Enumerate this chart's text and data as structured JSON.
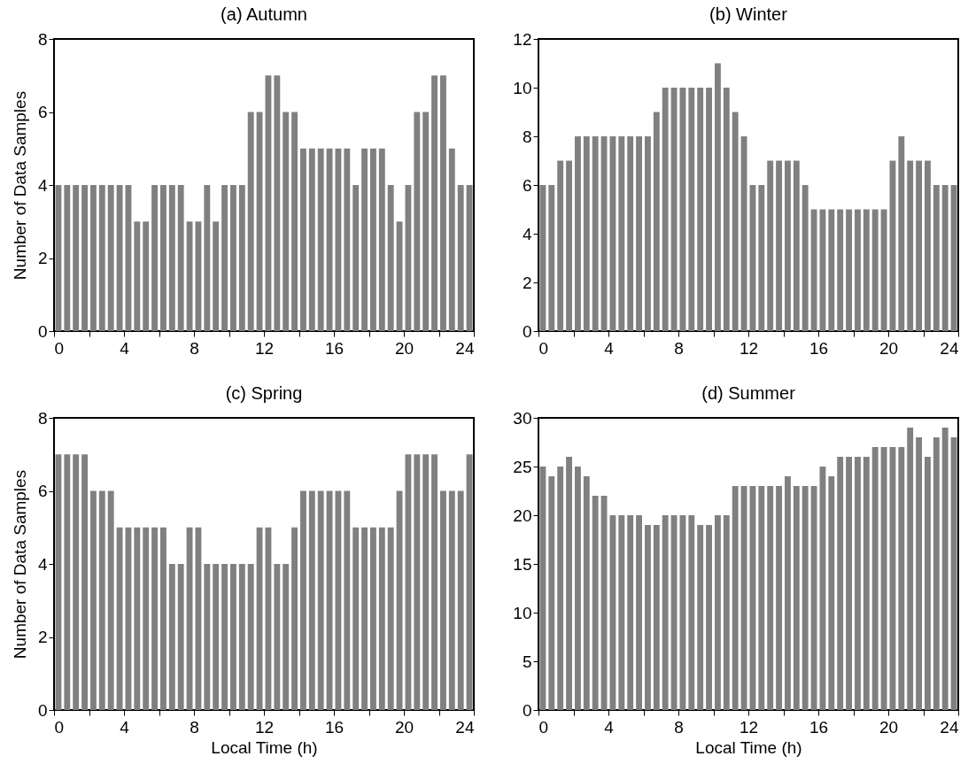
{
  "chart_data": [
    {
      "type": "histogram",
      "title": "(a) Autumn",
      "ylabel": "Number of Data Samples",
      "color": "#808080",
      "bins": [
        0,
        0.5,
        1,
        1.5,
        2,
        2.5,
        3,
        3.5,
        4,
        4.5,
        5,
        5.5,
        6,
        6.5,
        7,
        7.5,
        8,
        8.5,
        9,
        9.5,
        10,
        10.5,
        11,
        11.5,
        12,
        12.5,
        13,
        13.5,
        14,
        14.5,
        15,
        15.5,
        16,
        16.5,
        17,
        17.5,
        18,
        18.5,
        19,
        19.5,
        20,
        20.5,
        21,
        21.5,
        22,
        22.5,
        23,
        23.5,
        24
      ],
      "values": [
        4,
        4,
        4,
        4,
        4,
        4,
        4,
        4,
        4,
        3,
        3,
        4,
        4,
        4,
        4,
        3,
        3,
        4,
        3,
        4,
        4,
        4,
        6,
        6,
        7,
        7,
        6,
        6,
        5,
        5,
        5,
        5,
        5,
        5,
        4,
        5,
        5,
        5,
        4,
        3,
        4,
        6,
        6,
        7,
        7,
        5,
        4,
        4
      ],
      "xlim": [
        0,
        24
      ],
      "xticks": [
        0,
        {
          "value": 2,
          "label": null
        },
        4,
        {
          "value": 6,
          "label": null
        },
        8,
        {
          "value": 10,
          "label": null
        },
        12,
        {
          "value": 14,
          "label": null
        },
        16,
        {
          "value": 18,
          "label": null
        },
        20,
        {
          "value": 22,
          "label": null
        },
        24
      ],
      "ylim": [
        0,
        8
      ],
      "yticks": [
        0,
        2,
        4,
        6,
        8
      ]
    },
    {
      "type": "histogram",
      "title": "(b) Winter",
      "color": "#808080",
      "bins": [
        0,
        0.5,
        1,
        1.5,
        2,
        2.5,
        3,
        3.5,
        4,
        4.5,
        5,
        5.5,
        6,
        6.5,
        7,
        7.5,
        8,
        8.5,
        9,
        9.5,
        10,
        10.5,
        11,
        11.5,
        12,
        12.5,
        13,
        13.5,
        14,
        14.5,
        15,
        15.5,
        16,
        16.5,
        17,
        17.5,
        18,
        18.5,
        19,
        19.5,
        20,
        20.5,
        21,
        21.5,
        22,
        22.5,
        23,
        23.5,
        24
      ],
      "values": [
        6,
        6,
        7,
        7,
        8,
        8,
        8,
        8,
        8,
        8,
        8,
        8,
        8,
        9,
        10,
        10,
        10,
        10,
        10,
        10,
        11,
        10,
        9,
        8,
        6,
        6,
        7,
        7,
        7,
        7,
        6,
        5,
        5,
        5,
        5,
        5,
        5,
        5,
        5,
        5,
        7,
        8,
        7,
        7,
        7,
        6,
        6,
        6
      ],
      "xlim": [
        0,
        24
      ],
      "xticks": [
        0,
        {
          "value": 2,
          "label": null
        },
        4,
        {
          "value": 6,
          "label": null
        },
        8,
        {
          "value": 10,
          "label": null
        },
        12,
        {
          "value": 14,
          "label": null
        },
        16,
        {
          "value": 18,
          "label": null
        },
        20,
        {
          "value": 22,
          "label": null
        },
        24
      ],
      "ylim": [
        0,
        12
      ],
      "yticks": [
        0,
        2,
        4,
        6,
        8,
        10,
        12
      ]
    },
    {
      "type": "histogram",
      "title": "(c) Spring",
      "xlabel": "Local Time (h)",
      "ylabel": "Number of Data Samples",
      "color": "#808080",
      "bins": [
        0,
        0.5,
        1,
        1.5,
        2,
        2.5,
        3,
        3.5,
        4,
        4.5,
        5,
        5.5,
        6,
        6.5,
        7,
        7.5,
        8,
        8.5,
        9,
        9.5,
        10,
        10.5,
        11,
        11.5,
        12,
        12.5,
        13,
        13.5,
        14,
        14.5,
        15,
        15.5,
        16,
        16.5,
        17,
        17.5,
        18,
        18.5,
        19,
        19.5,
        20,
        20.5,
        21,
        21.5,
        22,
        22.5,
        23,
        23.5,
        24
      ],
      "values": [
        7,
        7,
        7,
        7,
        6,
        6,
        6,
        5,
        5,
        5,
        5,
        5,
        5,
        4,
        4,
        5,
        5,
        4,
        4,
        4,
        4,
        4,
        4,
        5,
        5,
        4,
        4,
        5,
        6,
        6,
        6,
        6,
        6,
        6,
        5,
        5,
        5,
        5,
        5,
        6,
        7,
        7,
        7,
        7,
        6,
        6,
        6,
        7
      ],
      "xlim": [
        0,
        24
      ],
      "xticks": [
        0,
        {
          "value": 2,
          "label": null
        },
        4,
        {
          "value": 6,
          "label": null
        },
        8,
        {
          "value": 10,
          "label": null
        },
        12,
        {
          "value": 14,
          "label": null
        },
        16,
        {
          "value": 18,
          "label": null
        },
        20,
        {
          "value": 22,
          "label": null
        },
        24
      ],
      "ylim": [
        0,
        8
      ],
      "yticks": [
        0,
        2,
        4,
        6,
        8
      ]
    },
    {
      "type": "histogram",
      "title": "(d) Summer",
      "xlabel": "Local Time (h)",
      "color": "#808080",
      "bins": [
        0,
        0.5,
        1,
        1.5,
        2,
        2.5,
        3,
        3.5,
        4,
        4.5,
        5,
        5.5,
        6,
        6.5,
        7,
        7.5,
        8,
        8.5,
        9,
        9.5,
        10,
        10.5,
        11,
        11.5,
        12,
        12.5,
        13,
        13.5,
        14,
        14.5,
        15,
        15.5,
        16,
        16.5,
        17,
        17.5,
        18,
        18.5,
        19,
        19.5,
        20,
        20.5,
        21,
        21.5,
        22,
        22.5,
        23,
        23.5,
        24
      ],
      "values": [
        25,
        24,
        25,
        26,
        25,
        24,
        22,
        22,
        20,
        20,
        20,
        20,
        19,
        19,
        20,
        20,
        20,
        20,
        19,
        19,
        20,
        20,
        23,
        23,
        23,
        23,
        23,
        23,
        24,
        23,
        23,
        23,
        25,
        24,
        26,
        26,
        26,
        26,
        27,
        27,
        27,
        27,
        29,
        28,
        26,
        28,
        29,
        28
      ],
      "xlim": [
        0,
        24
      ],
      "xticks": [
        0,
        {
          "value": 2,
          "label": null
        },
        4,
        {
          "value": 6,
          "label": null
        },
        8,
        {
          "value": 10,
          "label": null
        },
        12,
        {
          "value": 14,
          "label": null
        },
        16,
        {
          "value": 18,
          "label": null
        },
        20,
        {
          "value": 22,
          "label": null
        },
        24
      ],
      "ylim": [
        0,
        30
      ],
      "yticks": [
        0,
        5,
        10,
        15,
        20,
        25,
        30
      ]
    }
  ]
}
